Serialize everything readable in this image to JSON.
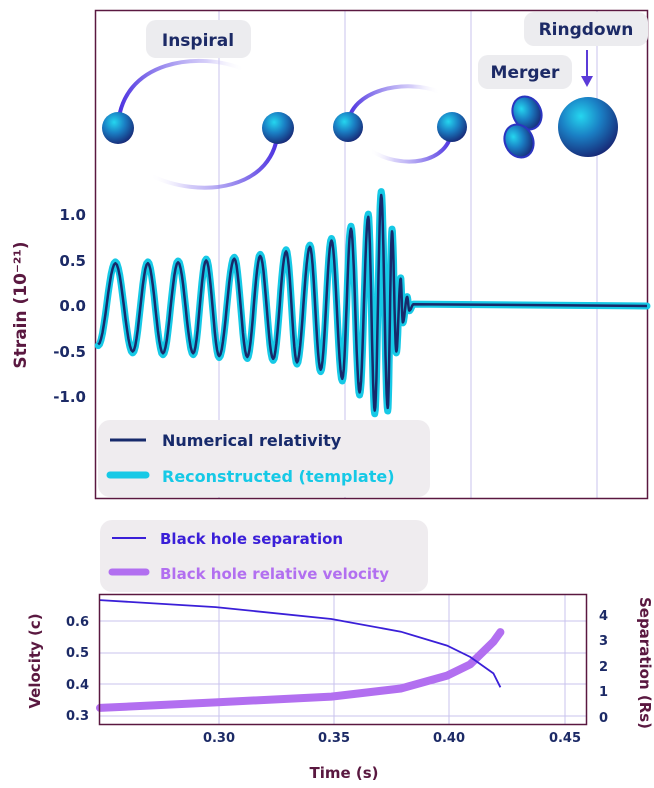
{
  "colors": {
    "frame": "#5a1840",
    "grid": "#c9c3ee",
    "nr": "#172a6b",
    "template": "#16c9e6",
    "separation": "#3a1fd8",
    "velocity": "#b26ff0",
    "axis_text": "#5a1840",
    "tick_text": "#1c2a66",
    "legend_bg": "#efecef",
    "phase_label_bg": "#ececef",
    "phase_label_text": "#1c2a66"
  },
  "phases": {
    "inspiral": "Inspiral",
    "merger": "Merger",
    "ringdown": "Ringdown"
  },
  "chart_data": [
    {
      "type": "line",
      "ylabel": "Strain (10⁻²¹)",
      "yticks": [
        "1.0",
        "0.5",
        "0.0",
        "-0.5",
        "-1.0"
      ],
      "ylim": [
        -1.6,
        1.6
      ],
      "grid": true,
      "legend_placement": "bottom-left",
      "series": [
        {
          "name": "Numerical relativity",
          "color": "#172a6b",
          "peaks": [
            {
              "t": 0.254,
              "y": 0.47
            },
            {
              "t": 0.262,
              "y": -0.5
            },
            {
              "t": 0.269,
              "y": 0.47
            },
            {
              "t": 0.276,
              "y": -0.52
            },
            {
              "t": 0.283,
              "y": 0.48
            },
            {
              "t": 0.29,
              "y": -0.52
            },
            {
              "t": 0.296,
              "y": 0.5
            },
            {
              "t": 0.302,
              "y": -0.55
            },
            {
              "t": 0.309,
              "y": 0.52
            },
            {
              "t": 0.315,
              "y": -0.56
            },
            {
              "t": 0.321,
              "y": 0.55
            },
            {
              "t": 0.327,
              "y": -0.58
            },
            {
              "t": 0.333,
              "y": 0.6
            },
            {
              "t": 0.338,
              "y": -0.62
            },
            {
              "t": 0.344,
              "y": 0.65
            },
            {
              "t": 0.349,
              "y": -0.7
            },
            {
              "t": 0.354,
              "y": 0.72
            },
            {
              "t": 0.359,
              "y": -0.8
            },
            {
              "t": 0.363,
              "y": 0.85
            },
            {
              "t": 0.367,
              "y": -0.95
            },
            {
              "t": 0.371,
              "y": 0.98
            },
            {
              "t": 0.374,
              "y": -1.15
            },
            {
              "t": 0.377,
              "y": 1.22
            },
            {
              "t": 0.38,
              "y": -1.12
            },
            {
              "t": 0.382,
              "y": 0.82
            },
            {
              "t": 0.384,
              "y": -0.5
            },
            {
              "t": 0.386,
              "y": 0.3
            },
            {
              "t": 0.387,
              "y": -0.18
            },
            {
              "t": 0.389,
              "y": 0.1
            },
            {
              "t": 0.39,
              "y": -0.05
            },
            {
              "t": 0.392,
              "y": 0.02
            }
          ]
        },
        {
          "name": "Reconstructed (template)",
          "color": "#16c9e6"
        }
      ]
    },
    {
      "type": "line",
      "xlabel": "Time (s)",
      "ylabel_left": "Velocity (c)",
      "ylabel_right": "Separation (Rs)",
      "xlim": [
        0.25,
        0.46
      ],
      "ylim_left": [
        0.28,
        0.68
      ],
      "ylim_right": [
        -0.2,
        4.9
      ],
      "xticks": [
        "0.30",
        "0.35",
        "0.40",
        "0.45"
      ],
      "yticks_left": [
        "0.6",
        "0.5",
        "0.4",
        "0.3"
      ],
      "yticks_right": [
        "4",
        "3",
        "2",
        "1",
        "0"
      ],
      "grid": true,
      "legend_placement": "top-left (above plot)",
      "series": [
        {
          "name": "Black hole separation",
          "axis": "right",
          "color": "#3a1fd8",
          "x": [
            0.25,
            0.3,
            0.35,
            0.38,
            0.4,
            0.41,
            0.42,
            0.423
          ],
          "y": [
            4.7,
            4.42,
            3.95,
            3.45,
            2.9,
            2.45,
            1.8,
            1.25
          ]
        },
        {
          "name": "Black hole relative velocity",
          "axis": "left",
          "color": "#b26ff0",
          "x": [
            0.25,
            0.3,
            0.35,
            0.38,
            0.4,
            0.41,
            0.42,
            0.423
          ],
          "y": [
            0.33,
            0.347,
            0.365,
            0.39,
            0.43,
            0.465,
            0.535,
            0.565
          ]
        }
      ]
    }
  ]
}
